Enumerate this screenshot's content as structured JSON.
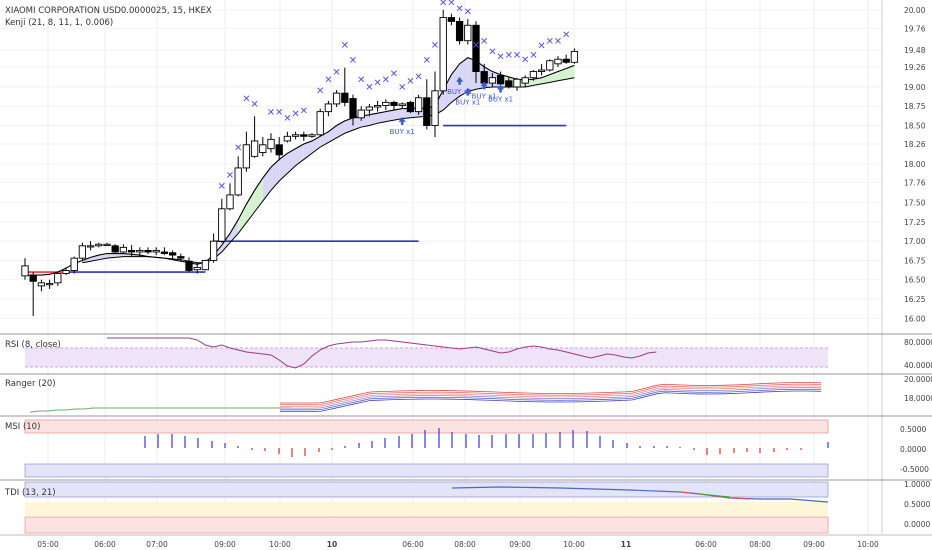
{
  "header": {
    "title": "XIAOMI CORPORATION USD0.0000025, 15, HKEX",
    "indicator": "Kenji (21, 8, 11, 1, 0.006)"
  },
  "colors": {
    "up_candle": "#ffffff",
    "down_candle": "#000000",
    "marker_x": "#5b4de8",
    "buy_arrow": "#3b5bdb",
    "fast_ma": "#000000",
    "slow_ma": "#000000",
    "cloud_bear": "#d8d8f6",
    "cloud_bull": "#d4f2d0",
    "hline_blue": "#2b35c0",
    "hline_red": "#ff3030",
    "rsi_line": "#9a3b8a",
    "rsi_band": "#efe3f7",
    "msi_up": "#3a3ad8",
    "msi_down": "#e03030",
    "tdi_line": "#4a68c8"
  },
  "chart_data": {
    "type": "candlestick",
    "x_ticks": [
      "05:00",
      "06:00",
      "07:00",
      "09:00",
      "10:00",
      "10",
      "06:00",
      "08:00",
      "09:00",
      "10:00",
      "11",
      "06:00",
      "08:00",
      "09:00",
      "10:00"
    ],
    "y_ticks": [
      "20.00",
      "19.76",
      "19.48",
      "19.26",
      "19.00",
      "18.75",
      "18.50",
      "18.26",
      "18.00",
      "17.76",
      "17.50",
      "17.25",
      "17.00",
      "16.75",
      "16.50",
      "16.25",
      "16.00"
    ],
    "ylim": [
      15.9,
      20.05
    ],
    "candles": [
      {
        "o": 16.55,
        "h": 16.78,
        "l": 16.5,
        "c": 16.68
      },
      {
        "o": 16.55,
        "h": 16.6,
        "l": 16.03,
        "c": 16.48
      },
      {
        "o": 16.42,
        "h": 16.5,
        "l": 16.35,
        "c": 16.46
      },
      {
        "o": 16.44,
        "h": 16.5,
        "l": 16.38,
        "c": 16.45
      },
      {
        "o": 16.46,
        "h": 16.6,
        "l": 16.42,
        "c": 16.58
      },
      {
        "o": 16.58,
        "h": 16.66,
        "l": 16.56,
        "c": 16.62
      },
      {
        "o": 16.62,
        "h": 16.8,
        "l": 16.58,
        "c": 16.78
      },
      {
        "o": 16.78,
        "h": 16.98,
        "l": 16.74,
        "c": 16.94
      },
      {
        "o": 16.94,
        "h": 17.0,
        "l": 16.88,
        "c": 16.94
      },
      {
        "o": 16.94,
        "h": 16.98,
        "l": 16.92,
        "c": 16.96
      },
      {
        "o": 16.96,
        "h": 16.98,
        "l": 16.94,
        "c": 16.96
      },
      {
        "o": 16.94,
        "h": 16.96,
        "l": 16.84,
        "c": 16.86
      },
      {
        "o": 16.86,
        "h": 16.96,
        "l": 16.84,
        "c": 16.92
      },
      {
        "o": 16.88,
        "h": 16.95,
        "l": 16.8,
        "c": 16.86
      },
      {
        "o": 16.86,
        "h": 16.92,
        "l": 16.8,
        "c": 16.88
      },
      {
        "o": 16.88,
        "h": 16.92,
        "l": 16.83,
        "c": 16.86
      },
      {
        "o": 16.86,
        "h": 16.92,
        "l": 16.82,
        "c": 16.88
      },
      {
        "o": 16.86,
        "h": 16.92,
        "l": 16.82,
        "c": 16.84
      },
      {
        "o": 16.85,
        "h": 16.88,
        "l": 16.76,
        "c": 16.82
      },
      {
        "o": 16.8,
        "h": 16.84,
        "l": 16.74,
        "c": 16.78
      },
      {
        "o": 16.74,
        "h": 16.79,
        "l": 16.6,
        "c": 16.62
      },
      {
        "o": 16.63,
        "h": 16.72,
        "l": 16.58,
        "c": 16.66
      },
      {
        "o": 16.63,
        "h": 16.76,
        "l": 16.62,
        "c": 16.75
      },
      {
        "o": 16.75,
        "h": 17.1,
        "l": 16.72,
        "c": 17.0
      },
      {
        "o": 17.0,
        "h": 17.55,
        "l": 16.98,
        "c": 17.42
      },
      {
        "o": 17.42,
        "h": 17.75,
        "l": 17.4,
        "c": 17.6
      },
      {
        "o": 17.6,
        "h": 18.1,
        "l": 17.58,
        "c": 17.95
      },
      {
        "o": 17.95,
        "h": 18.42,
        "l": 17.9,
        "c": 18.25
      },
      {
        "o": 18.1,
        "h": 18.62,
        "l": 18.08,
        "c": 18.3
      },
      {
        "o": 18.15,
        "h": 18.35,
        "l": 18.1,
        "c": 18.25
      },
      {
        "o": 18.2,
        "h": 18.4,
        "l": 18.15,
        "c": 18.32
      },
      {
        "o": 18.25,
        "h": 18.35,
        "l": 18.05,
        "c": 18.12
      },
      {
        "o": 18.3,
        "h": 18.42,
        "l": 18.28,
        "c": 18.36
      },
      {
        "o": 18.36,
        "h": 18.42,
        "l": 18.32,
        "c": 18.38
      },
      {
        "o": 18.38,
        "h": 18.42,
        "l": 18.3,
        "c": 18.36
      },
      {
        "o": 18.36,
        "h": 18.4,
        "l": 18.34,
        "c": 18.38
      },
      {
        "o": 18.38,
        "h": 18.72,
        "l": 18.36,
        "c": 18.68
      },
      {
        "o": 18.68,
        "h": 18.82,
        "l": 18.62,
        "c": 18.78
      },
      {
        "o": 18.78,
        "h": 18.96,
        "l": 18.74,
        "c": 18.92
      },
      {
        "o": 18.92,
        "h": 19.25,
        "l": 18.75,
        "c": 18.8
      },
      {
        "o": 18.85,
        "h": 18.9,
        "l": 18.5,
        "c": 18.6
      },
      {
        "o": 18.6,
        "h": 18.75,
        "l": 18.56,
        "c": 18.7
      },
      {
        "o": 18.7,
        "h": 18.78,
        "l": 18.62,
        "c": 18.74
      },
      {
        "o": 18.74,
        "h": 18.82,
        "l": 18.68,
        "c": 18.76
      },
      {
        "o": 18.76,
        "h": 18.84,
        "l": 18.7,
        "c": 18.8
      },
      {
        "o": 18.8,
        "h": 18.82,
        "l": 18.7,
        "c": 18.76
      },
      {
        "o": 18.76,
        "h": 18.8,
        "l": 18.72,
        "c": 18.78
      },
      {
        "o": 18.8,
        "h": 18.82,
        "l": 18.66,
        "c": 18.68
      },
      {
        "o": 18.68,
        "h": 18.9,
        "l": 18.64,
        "c": 18.86
      },
      {
        "o": 18.86,
        "h": 19.1,
        "l": 18.45,
        "c": 18.5
      },
      {
        "o": 18.5,
        "h": 19.2,
        "l": 18.35,
        "c": 18.95
      },
      {
        "o": 18.95,
        "h": 20.0,
        "l": 18.9,
        "c": 19.9
      },
      {
        "o": 19.9,
        "h": 19.95,
        "l": 19.8,
        "c": 19.85
      },
      {
        "o": 19.85,
        "h": 19.9,
        "l": 19.55,
        "c": 19.6
      },
      {
        "o": 19.6,
        "h": 19.88,
        "l": 19.55,
        "c": 19.8
      },
      {
        "o": 19.8,
        "h": 19.85,
        "l": 19.05,
        "c": 19.2
      },
      {
        "o": 19.2,
        "h": 19.3,
        "l": 18.98,
        "c": 19.05
      },
      {
        "o": 19.05,
        "h": 19.18,
        "l": 19.0,
        "c": 19.12
      },
      {
        "o": 19.15,
        "h": 19.2,
        "l": 19.0,
        "c": 19.04
      },
      {
        "o": 19.08,
        "h": 19.12,
        "l": 18.98,
        "c": 19.0
      },
      {
        "o": 19.0,
        "h": 19.12,
        "l": 18.95,
        "c": 19.1
      },
      {
        "o": 19.05,
        "h": 19.15,
        "l": 19.0,
        "c": 19.12
      },
      {
        "o": 19.12,
        "h": 19.22,
        "l": 19.08,
        "c": 19.2
      },
      {
        "o": 19.2,
        "h": 19.3,
        "l": 19.15,
        "c": 19.22
      },
      {
        "o": 19.22,
        "h": 19.36,
        "l": 19.2,
        "c": 19.34
      },
      {
        "o": 19.3,
        "h": 19.4,
        "l": 19.26,
        "c": 19.36
      },
      {
        "o": 19.36,
        "h": 19.42,
        "l": 19.3,
        "c": 19.32
      },
      {
        "o": 19.32,
        "h": 19.5,
        "l": 19.3,
        "c": 19.46
      }
    ],
    "x_markers": [
      {
        "i": 24,
        "y": 17.62
      },
      {
        "i": 25,
        "y": 17.76
      },
      {
        "i": 26,
        "y": 18.12
      },
      {
        "i": 27,
        "y": 18.75
      },
      {
        "i": 28,
        "y": 18.68
      },
      {
        "i": 30,
        "y": 18.58
      },
      {
        "i": 31,
        "y": 18.58
      },
      {
        "i": 32,
        "y": 18.5
      },
      {
        "i": 33,
        "y": 18.56
      },
      {
        "i": 34,
        "y": 18.6
      },
      {
        "i": 36,
        "y": 18.86
      },
      {
        "i": 37,
        "y": 19.0
      },
      {
        "i": 38,
        "y": 19.1
      },
      {
        "i": 39,
        "y": 19.45
      },
      {
        "i": 40,
        "y": 19.25
      },
      {
        "i": 41,
        "y": 19.0
      },
      {
        "i": 42,
        "y": 18.9
      },
      {
        "i": 43,
        "y": 18.96
      },
      {
        "i": 44,
        "y": 19.0
      },
      {
        "i": 45,
        "y": 19.08
      },
      {
        "i": 46,
        "y": 18.9
      },
      {
        "i": 47,
        "y": 18.98
      },
      {
        "i": 48,
        "y": 19.04
      },
      {
        "i": 49,
        "y": 19.25
      },
      {
        "i": 50,
        "y": 19.45
      },
      {
        "i": 51,
        "y": 20.0
      },
      {
        "i": 52,
        "y": 20.0
      },
      {
        "i": 53,
        "y": 19.92
      },
      {
        "i": 54,
        "y": 19.88
      },
      {
        "i": 55,
        "y": 19.45
      },
      {
        "i": 56,
        "y": 19.5
      },
      {
        "i": 57,
        "y": 19.36
      },
      {
        "i": 58,
        "y": 19.3
      },
      {
        "i": 59,
        "y": 19.32
      },
      {
        "i": 60,
        "y": 19.32
      },
      {
        "i": 61,
        "y": 19.26
      },
      {
        "i": 62,
        "y": 19.32
      },
      {
        "i": 63,
        "y": 19.44
      },
      {
        "i": 64,
        "y": 19.5
      },
      {
        "i": 65,
        "y": 19.5
      },
      {
        "i": 66,
        "y": 19.58
      }
    ],
    "buy_signals": [
      {
        "i": 46,
        "y": 18.56,
        "label": "BUY x1"
      },
      {
        "i": 53,
        "y": 19.08,
        "label": "BUY x1"
      },
      {
        "i": 54,
        "y": 18.94,
        "label": "BUY x1"
      },
      {
        "i": 56,
        "y": 19.02,
        "label": "BUY x1"
      },
      {
        "i": 58,
        "y": 18.98,
        "label": "BUY x1"
      }
    ],
    "fast_ma": [
      16.56,
      16.56,
      16.56,
      16.57,
      16.6,
      16.65,
      16.71,
      16.75,
      16.79,
      16.82,
      16.84,
      16.84,
      16.84,
      16.83,
      16.82,
      16.8,
      16.79,
      16.78,
      16.76,
      16.74,
      16.72,
      16.7,
      16.73,
      16.82,
      16.95,
      17.1,
      17.28,
      17.48,
      17.66,
      17.82,
      17.96,
      18.06,
      18.14,
      18.2,
      18.26,
      18.3,
      18.36,
      18.42,
      18.5,
      18.56,
      18.6,
      18.62,
      18.64,
      18.66,
      18.68,
      18.7,
      18.72,
      18.72,
      18.73,
      18.72,
      18.76,
      18.96,
      19.16,
      19.3,
      19.38,
      19.34,
      19.26,
      19.2,
      19.16,
      19.13,
      19.1,
      19.09,
      19.1,
      19.12,
      19.16,
      19.2,
      19.24,
      19.28
    ],
    "slow_ma": [
      null,
      null,
      null,
      null,
      null,
      null,
      null,
      16.72,
      16.74,
      16.76,
      16.78,
      16.79,
      16.8,
      16.8,
      16.8,
      16.8,
      16.79,
      16.78,
      16.77,
      16.76,
      16.74,
      16.72,
      16.72,
      16.77,
      16.86,
      16.98,
      17.1,
      17.24,
      17.38,
      17.52,
      17.66,
      17.78,
      17.88,
      17.98,
      18.06,
      18.14,
      18.22,
      18.28,
      18.34,
      18.4,
      18.44,
      18.48,
      18.5,
      18.53,
      18.55,
      18.57,
      18.59,
      18.6,
      18.61,
      18.62,
      18.64,
      18.7,
      18.8,
      18.88,
      18.94,
      18.97,
      18.99,
      19.0,
      19.0,
      19.0,
      19.0,
      19.0,
      19.02,
      19.04,
      19.06,
      19.08,
      19.1,
      19.12
    ],
    "hlines": [
      {
        "y": 16.6,
        "from": 0,
        "to": 5,
        "color": "red"
      },
      {
        "y": 16.6,
        "from": 5,
        "to": 22,
        "color": "blue"
      },
      {
        "y": 17.0,
        "from": 23,
        "to": 48,
        "color": "blue"
      },
      {
        "y": 18.5,
        "from": 51,
        "to": 66,
        "color": "blue"
      }
    ],
    "rsi": {
      "label": "RSI (8, close)",
      "ticks": [
        "80.0000",
        "40.0000"
      ]
    },
    "ranger": {
      "label": "Ranger (20)",
      "ticks": [
        "20.0000",
        "18.0000"
      ]
    },
    "msi": {
      "label": "MSI (10)",
      "ticks": [
        "0.5000",
        "0.0000",
        "-0.5000"
      ]
    },
    "tdi": {
      "label": "TDI (13, 21)",
      "ticks": [
        "1.0000",
        "0.5000",
        "0.0000"
      ]
    }
  }
}
